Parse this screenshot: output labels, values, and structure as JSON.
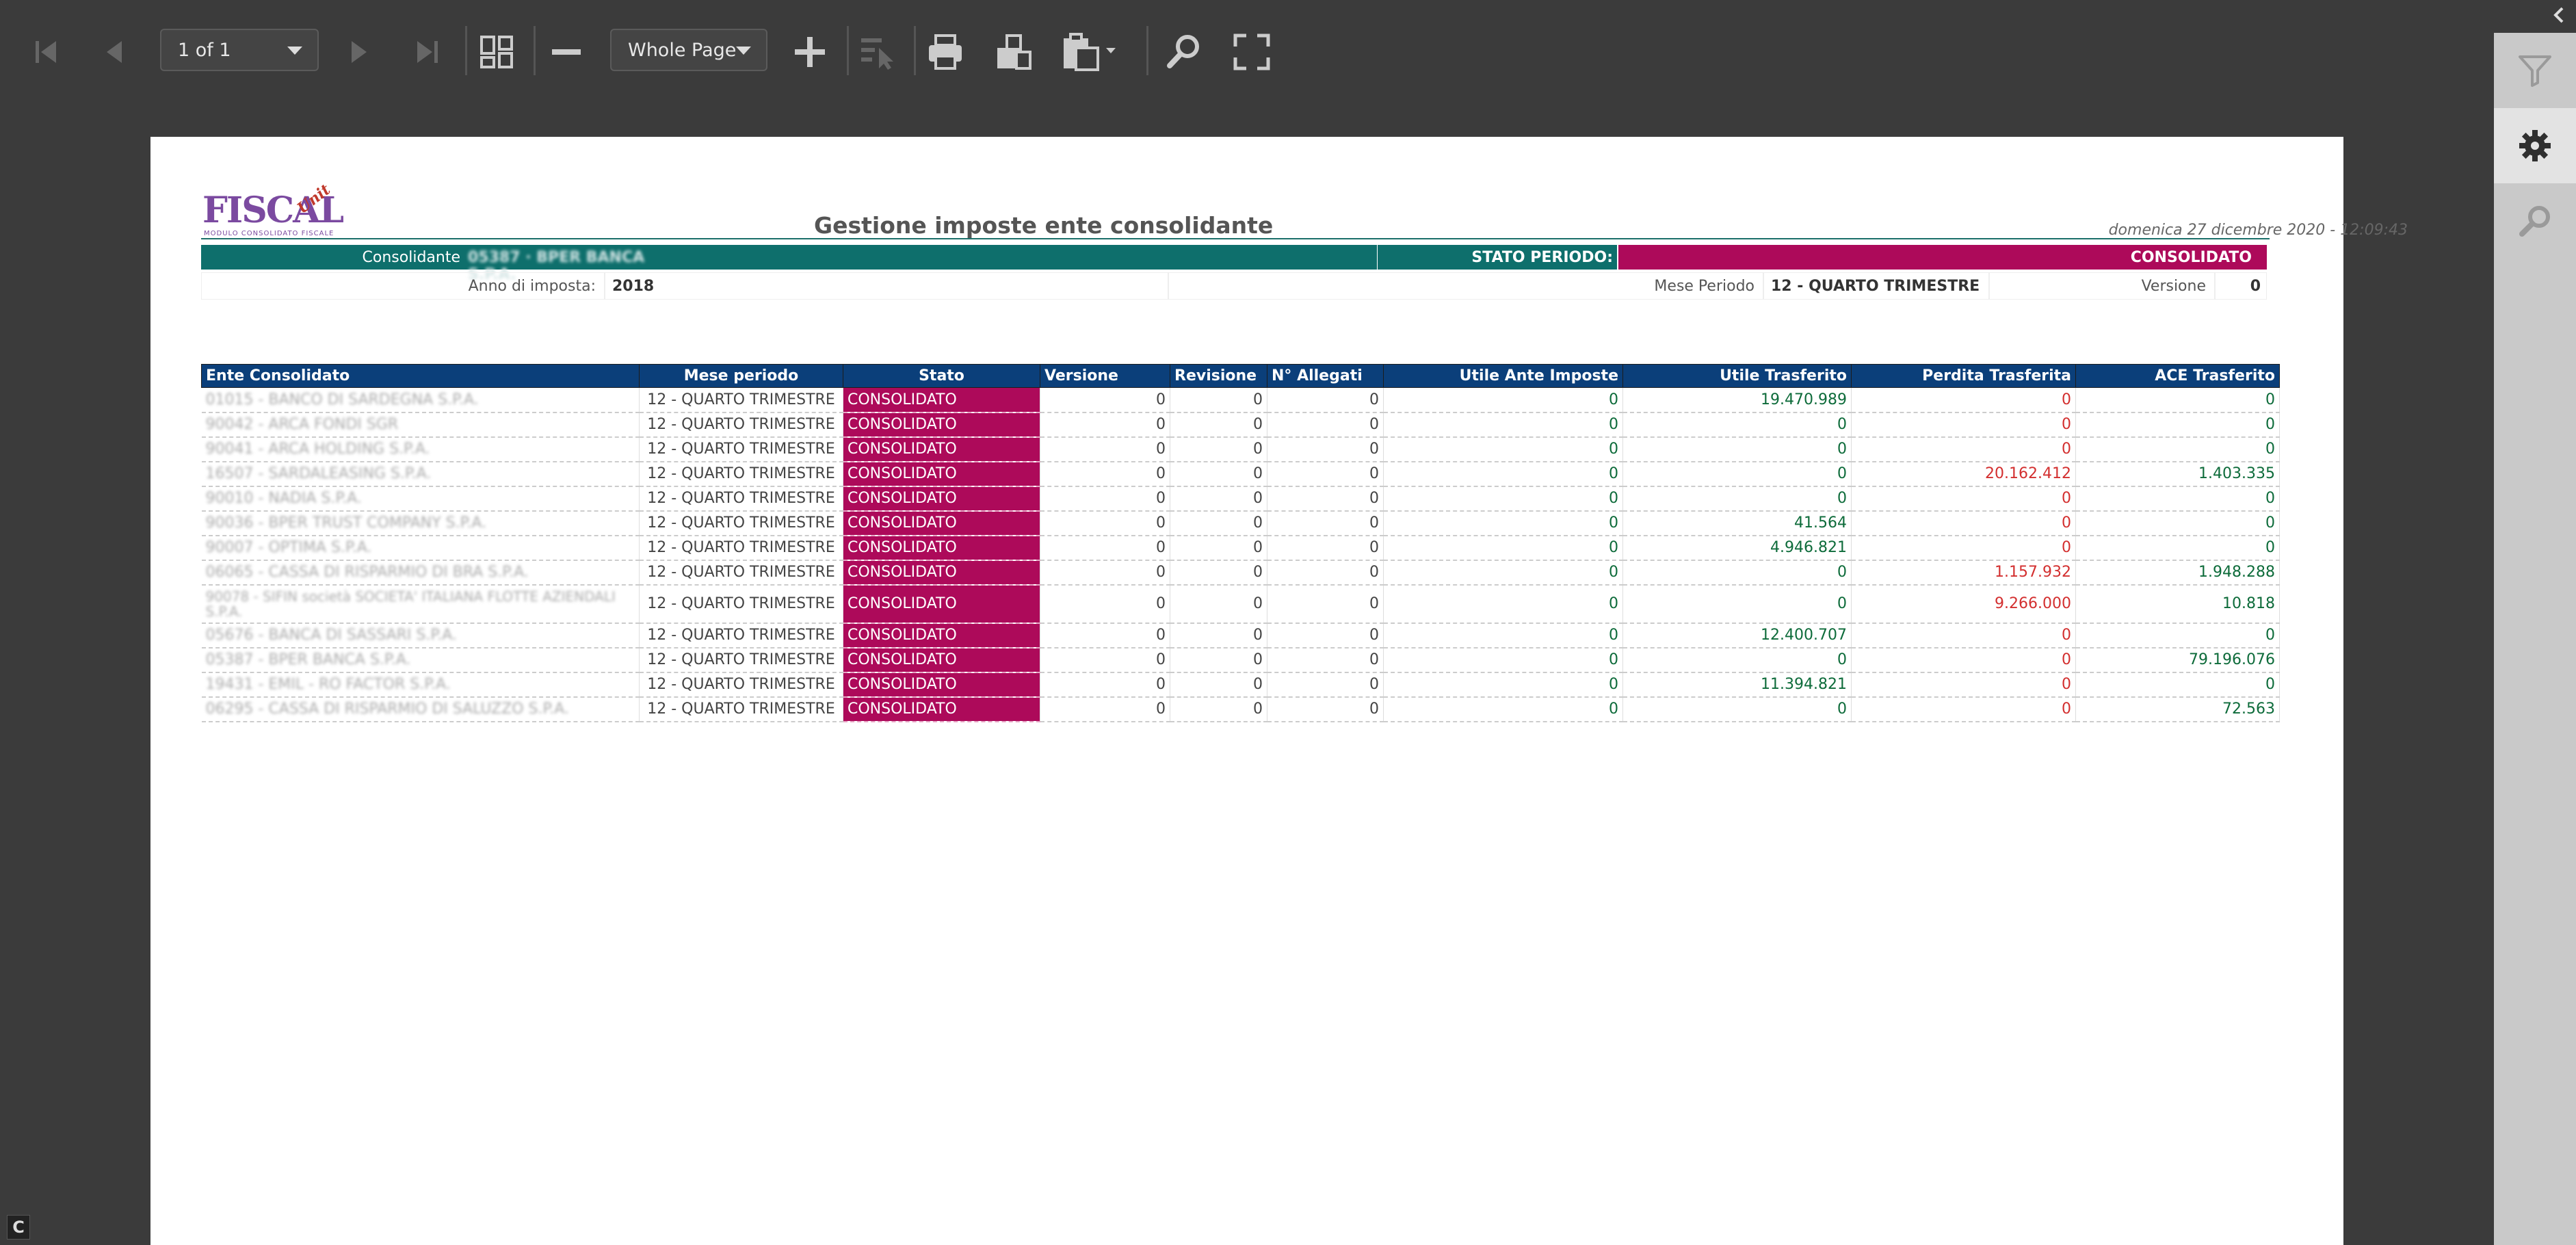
{
  "toolbar": {
    "page_indicator": "1 of 1",
    "zoom_value": "Whole Page"
  },
  "report": {
    "title": "Gestione imposte ente consolidante",
    "date": "domenica 27 dicembre 2020 - 12:09:43",
    "logo_text": "FISCAL",
    "logo_unit": "Unit",
    "logo_subtitle": "MODULO CONSOLIDATO FISCALE",
    "consolidante_label": "Consolidante",
    "consolidante_value": "05387 · BPER BANCA S.P.A.",
    "stato_periodo_label": "STATO PERIODO:",
    "stato_periodo_value": "CONSOLIDATO",
    "anno_label": "Anno di imposta:",
    "anno_value": "2018",
    "mese_label": "Mese Periodo",
    "mese_value": "12 - QUARTO TRIMESTRE",
    "versione_label": "Versione",
    "versione_value": "0"
  },
  "table": {
    "headers": [
      "Ente Consolidato",
      "Mese periodo",
      "Stato",
      "Versione",
      "Revisione",
      "N° Allegati",
      "Utile Ante Imposte",
      "Utile Trasferito",
      "Perdita Trasferita",
      "ACE Trasferito"
    ],
    "rows": [
      {
        "ente": "01015 - BANCO DI SARDEGNA S.P.A.",
        "mese": "12 - QUARTO TRIMESTRE",
        "stato": "CONSOLIDATO",
        "versione": "0",
        "revisione": "0",
        "allegati": "0",
        "utile_ante": "0",
        "utile_tr": "19.470.989",
        "perdita_tr": "0",
        "ace_tr": "0"
      },
      {
        "ente": "90042 - ARCA FONDI SGR",
        "mese": "12 - QUARTO TRIMESTRE",
        "stato": "CONSOLIDATO",
        "versione": "0",
        "revisione": "0",
        "allegati": "0",
        "utile_ante": "0",
        "utile_tr": "0",
        "perdita_tr": "0",
        "ace_tr": "0"
      },
      {
        "ente": "90041 - ARCA HOLDING S.P.A.",
        "mese": "12 - QUARTO TRIMESTRE",
        "stato": "CONSOLIDATO",
        "versione": "0",
        "revisione": "0",
        "allegati": "0",
        "utile_ante": "0",
        "utile_tr": "0",
        "perdita_tr": "0",
        "ace_tr": "0"
      },
      {
        "ente": "16507 - SARDALEASING S.P.A.",
        "mese": "12 - QUARTO TRIMESTRE",
        "stato": "CONSOLIDATO",
        "versione": "0",
        "revisione": "0",
        "allegati": "0",
        "utile_ante": "0",
        "utile_tr": "0",
        "perdita_tr": "20.162.412",
        "ace_tr": "1.403.335"
      },
      {
        "ente": "90010 - NADIA S.P.A.",
        "mese": "12 - QUARTO TRIMESTRE",
        "stato": "CONSOLIDATO",
        "versione": "0",
        "revisione": "0",
        "allegati": "0",
        "utile_ante": "0",
        "utile_tr": "0",
        "perdita_tr": "0",
        "ace_tr": "0"
      },
      {
        "ente": "90036 - BPER TRUST COMPANY S.P.A.",
        "mese": "12 - QUARTO TRIMESTRE",
        "stato": "CONSOLIDATO",
        "versione": "0",
        "revisione": "0",
        "allegati": "0",
        "utile_ante": "0",
        "utile_tr": "41.564",
        "perdita_tr": "0",
        "ace_tr": "0"
      },
      {
        "ente": "90007 - OPTIMA S.P.A.",
        "mese": "12 - QUARTO TRIMESTRE",
        "stato": "CONSOLIDATO",
        "versione": "0",
        "revisione": "0",
        "allegati": "0",
        "utile_ante": "0",
        "utile_tr": "4.946.821",
        "perdita_tr": "0",
        "ace_tr": "0"
      },
      {
        "ente": "06065 - CASSA DI RISPARMIO DI BRA S.P.A.",
        "mese": "12 - QUARTO TRIMESTRE",
        "stato": "CONSOLIDATO",
        "versione": "0",
        "revisione": "0",
        "allegati": "0",
        "utile_ante": "0",
        "utile_tr": "0",
        "perdita_tr": "1.157.932",
        "ace_tr": "1.948.288"
      },
      {
        "ente": "90078 - SIFIN società SOCIETA' ITALIANA FLOTTE AZIENDALI S.P.A.",
        "mese": "12 - QUARTO TRIMESTRE",
        "stato": "CONSOLIDATO",
        "versione": "0",
        "revisione": "0",
        "allegati": "0",
        "utile_ante": "0",
        "utile_tr": "0",
        "perdita_tr": "9.266.000",
        "ace_tr": "10.818",
        "tall": true
      },
      {
        "ente": "05676 - BANCA DI SASSARI S.P.A.",
        "mese": "12 - QUARTO TRIMESTRE",
        "stato": "CONSOLIDATO",
        "versione": "0",
        "revisione": "0",
        "allegati": "0",
        "utile_ante": "0",
        "utile_tr": "12.400.707",
        "perdita_tr": "0",
        "ace_tr": "0"
      },
      {
        "ente": "05387 - BPER BANCA S.P.A.",
        "mese": "12 - QUARTO TRIMESTRE",
        "stato": "CONSOLIDATO",
        "versione": "0",
        "revisione": "0",
        "allegati": "0",
        "utile_ante": "0",
        "utile_tr": "0",
        "perdita_tr": "0",
        "ace_tr": "79.196.076"
      },
      {
        "ente": "19431 - EMIL - RO FACTOR S.P.A.",
        "mese": "12 - QUARTO TRIMESTRE",
        "stato": "CONSOLIDATO",
        "versione": "0",
        "revisione": "0",
        "allegati": "0",
        "utile_ante": "0",
        "utile_tr": "11.394.821",
        "perdita_tr": "0",
        "ace_tr": "0"
      },
      {
        "ente": "06295 - CASSA DI RISPARMIO DI SALUZZO S.P.A.",
        "mese": "12 - QUARTO TRIMESTRE",
        "stato": "CONSOLIDATO",
        "versione": "0",
        "revisione": "0",
        "allegati": "0",
        "utile_ante": "0",
        "utile_tr": "0",
        "perdita_tr": "0",
        "ace_tr": "72.563"
      }
    ]
  },
  "colors": {
    "header_teal": "#0e6f6c",
    "status_magenta": "#ad0a5a",
    "table_header_blue": "#0b3f7a",
    "positive_green": "#0d6b3a",
    "negative_red": "#d32f2f"
  },
  "side_panel": {
    "icons": [
      "filter-icon",
      "gear-icon",
      "search-icon"
    ]
  },
  "footer_badge": "C"
}
